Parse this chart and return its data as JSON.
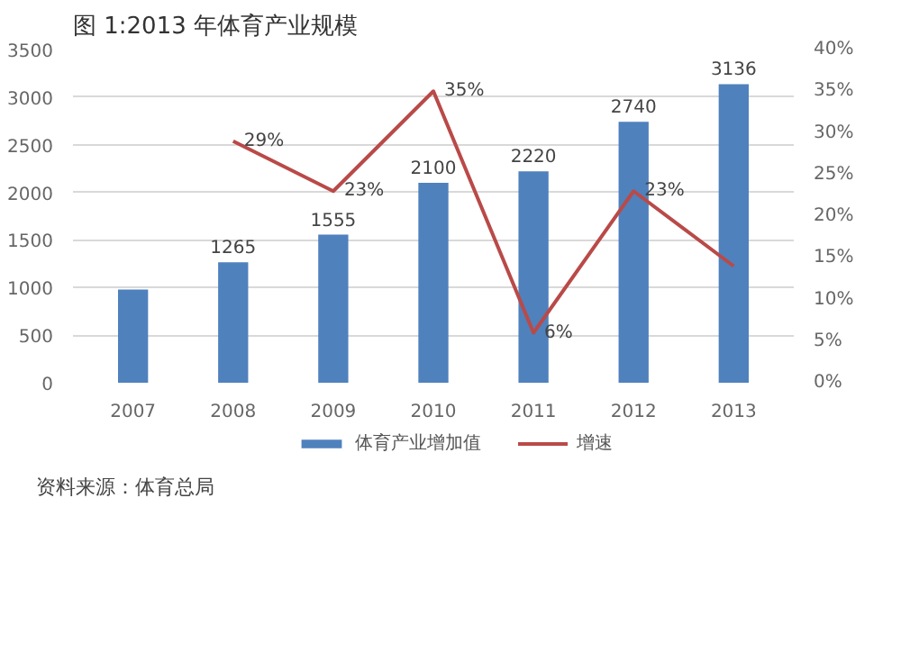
{
  "chart_data": {
    "type": "bar",
    "title": "图 1:2013 年体育产业规模",
    "categories": [
      "2007",
      "2008",
      "2009",
      "2010",
      "2011",
      "2012",
      "2013"
    ],
    "series": [
      {
        "name": "体育产业增加值",
        "color": "#4f81bd",
        "values": [
          980,
          1265,
          1555,
          2100,
          2220,
          2740,
          3136
        ],
        "value_labels": [
          null,
          "1265",
          "1555",
          "2100",
          "2220",
          "2740",
          "3136"
        ]
      },
      {
        "name": "增速",
        "type": "line",
        "axis": "y2",
        "color": "#b94a48",
        "values": [
          null,
          29,
          23,
          35,
          6,
          23,
          14
        ],
        "value_labels": [
          null,
          "29%",
          "23%",
          "35%",
          "6%",
          "23%",
          null
        ]
      }
    ],
    "ylim": [
      0,
      3500
    ],
    "yticks": [
      0,
      500,
      1000,
      1500,
      2000,
      2500,
      3000,
      3500
    ],
    "y2lim": [
      0,
      40
    ],
    "y2ticks": [
      {
        "value": 0,
        "label": "0%"
      },
      {
        "value": 5,
        "label": "5%"
      },
      {
        "value": 10,
        "label": "10%"
      },
      {
        "value": 15,
        "label": "15%"
      },
      {
        "value": 20,
        "label": "20%"
      },
      {
        "value": 25,
        "label": "25%"
      },
      {
        "value": 30,
        "label": "30%"
      },
      {
        "value": 35,
        "label": "35%"
      },
      {
        "value": 40,
        "label": "40%"
      }
    ],
    "grid": "y",
    "legend": "bottom",
    "marker": "none",
    "line_style": "solid",
    "annotations": [
      "资料来源：体育总局"
    ]
  }
}
